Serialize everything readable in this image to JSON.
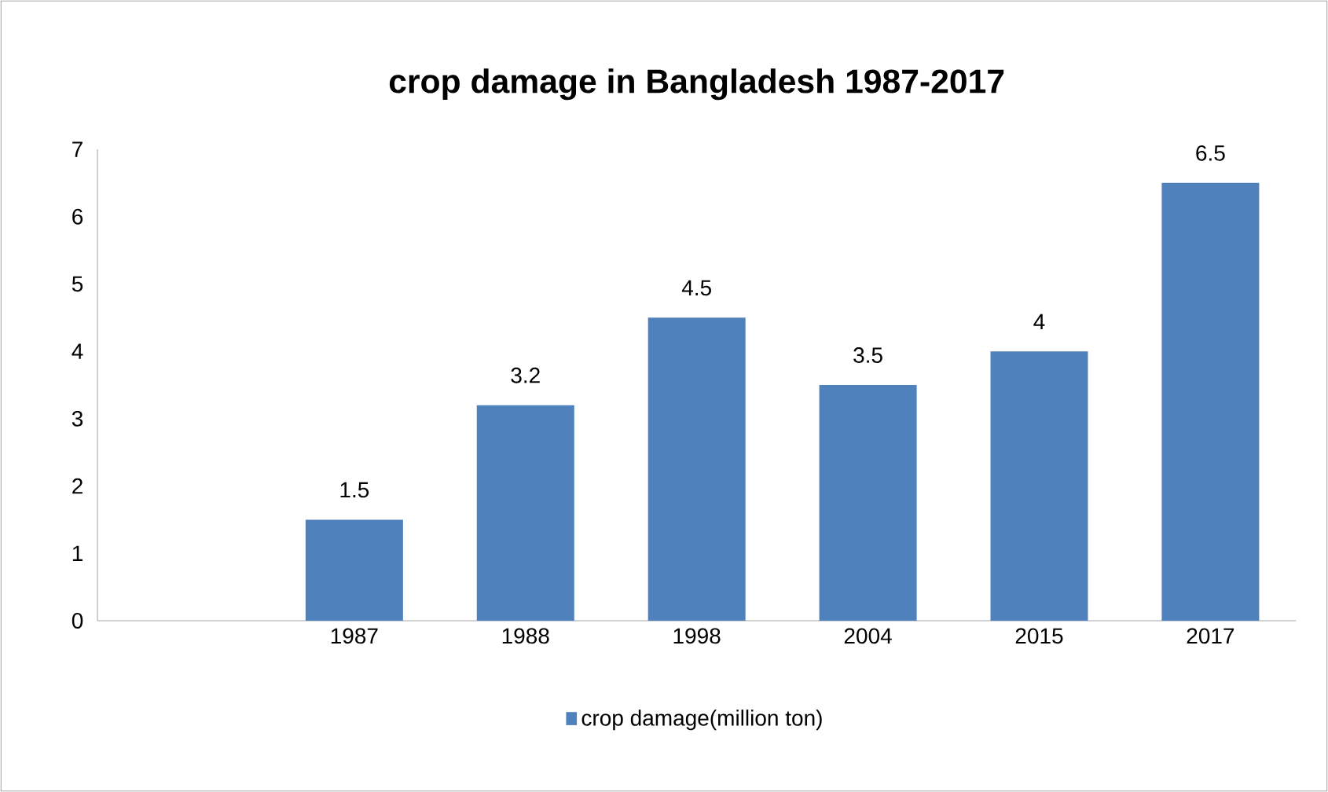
{
  "chart_data": {
    "type": "bar",
    "title": "crop damage in Bangladesh 1987-2017",
    "categories": [
      null,
      "1987",
      "1988",
      "1998",
      "2004",
      "2015",
      "2017"
    ],
    "series": [
      {
        "name": "crop damage(million ton)",
        "color": "#4f81bd",
        "values": [
          null,
          1.5,
          3.2,
          4.5,
          3.5,
          4,
          6.5
        ]
      }
    ],
    "ylim": [
      0,
      7
    ],
    "yticks": [
      0,
      1,
      2,
      3,
      4,
      5,
      6,
      7
    ],
    "grid": false,
    "legend": "bottom",
    "data_labels": true
  }
}
